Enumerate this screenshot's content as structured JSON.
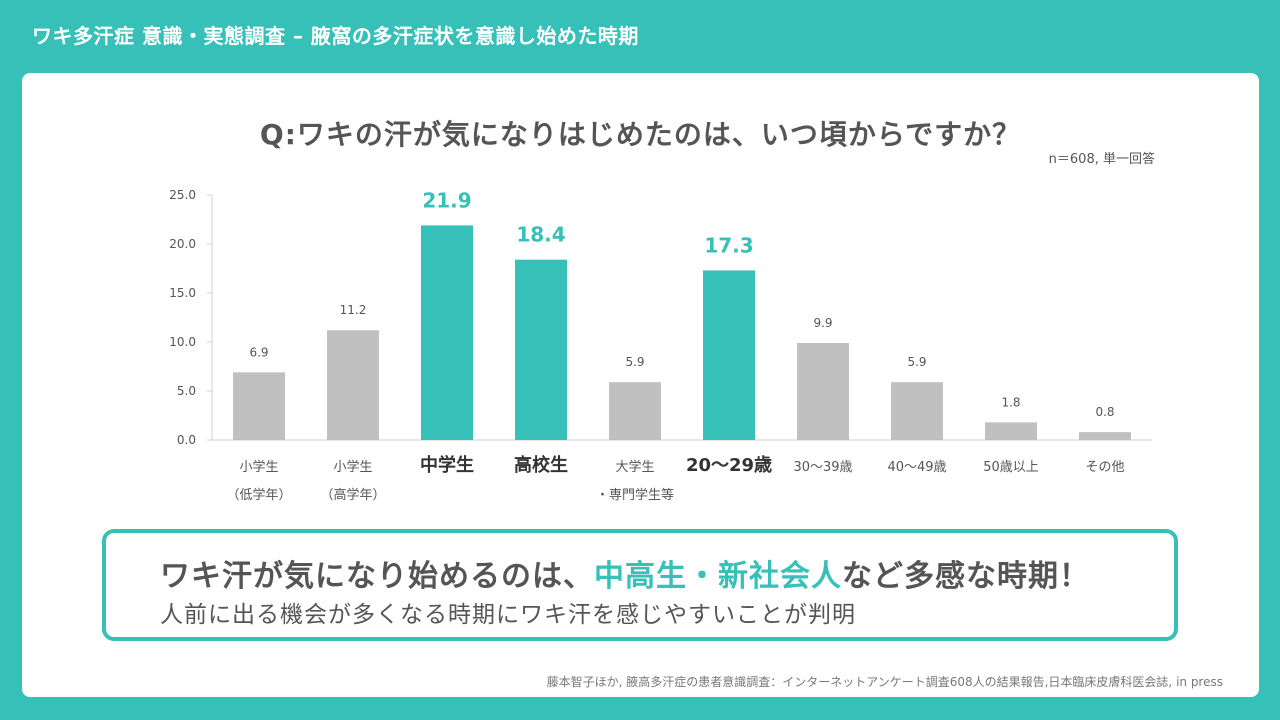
{
  "header": {
    "title": "ワキ多汗症 意識・実態調査 – 腋窩の多汗症状を意識し始めた時期"
  },
  "question": "Q:ワキの汗が気になりはじめたのは、いつ頃からですか？",
  "sample_note": "n＝608, 単一回答",
  "chart_data": {
    "type": "bar",
    "categories": [
      [
        "小学生",
        "（低学年）"
      ],
      [
        "小学生",
        "（高学年）"
      ],
      [
        "中学生"
      ],
      [
        "高校生"
      ],
      [
        "大学生",
        "・専門学生等"
      ],
      [
        "20～29歳"
      ],
      [
        "30～39歳"
      ],
      [
        "40～49歳"
      ],
      [
        "50歳以上"
      ],
      [
        "その他"
      ]
    ],
    "values": [
      6.9,
      11.2,
      21.9,
      18.4,
      5.9,
      17.3,
      9.9,
      5.9,
      1.8,
      0.8
    ],
    "highlighted": [
      false,
      false,
      true,
      true,
      false,
      true,
      false,
      false,
      false,
      false
    ],
    "yticks": [
      "0.0",
      "5.0",
      "10.0",
      "15.0",
      "20.0",
      "25.0"
    ],
    "ylim": [
      0,
      25
    ],
    "colors": {
      "highlight": "#36c0b8",
      "normal": "#c0c0c0",
      "axis": "#d0d0d0",
      "text": "#555555"
    }
  },
  "summary": {
    "headline_pre": "ワキ汗が気になり始めるのは、",
    "headline_highlight": "中高生・新社会人",
    "headline_post": "など多感な時期！",
    "subline": "人前に出る機会が多くなる時期にワキ汗を感じやすいことが判明"
  },
  "source": "藤本智子ほか, 腋高多汗症の患者意識調査：インターネットアンケート調査608人の結果報告,日本臨床皮膚科医会誌,  in press"
}
